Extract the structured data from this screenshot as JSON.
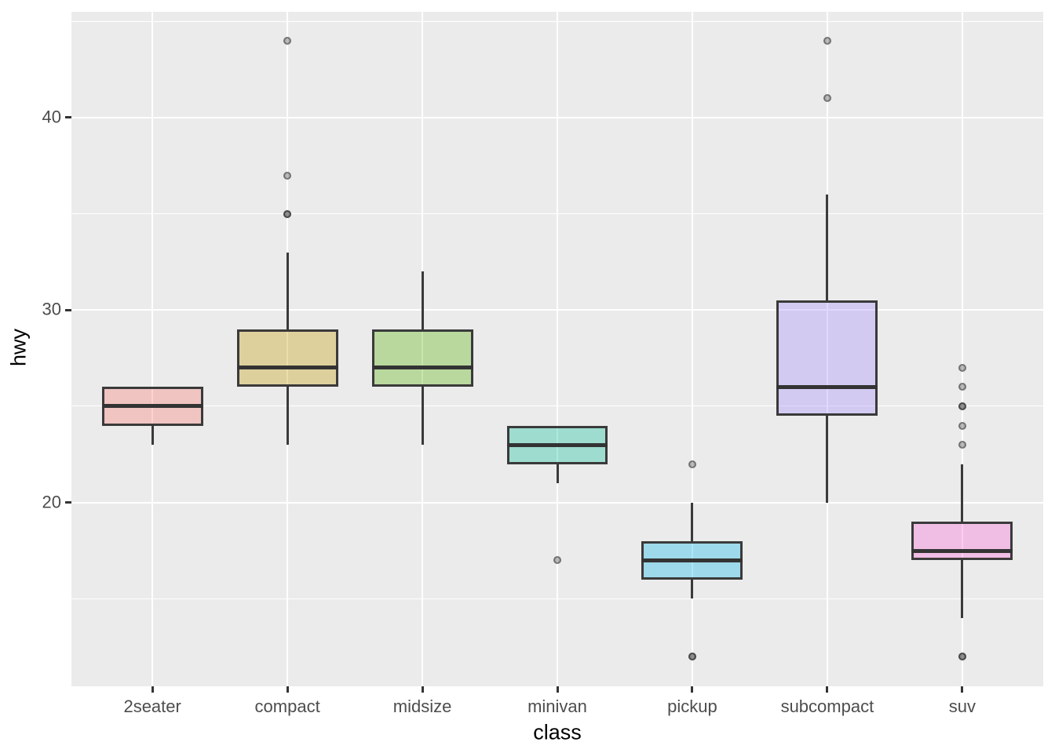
{
  "chart_data": {
    "type": "boxplot",
    "title": "",
    "xlabel": "class",
    "ylabel": "hwy",
    "categories": [
      "2seater",
      "compact",
      "midsize",
      "minivan",
      "pickup",
      "subcompact",
      "suv"
    ],
    "y_ticks": [
      20,
      30,
      40
    ],
    "y_minor_ticks": [
      15,
      25,
      35,
      45
    ],
    "ylim": [
      10.45,
      45.5
    ],
    "grid": "major-and-minor, white on gray panel",
    "legend": "none",
    "series": [
      {
        "class": "2seater",
        "fill": "#F8766D",
        "whisker_low": 23,
        "q1": 24,
        "median": 25,
        "q3": 26,
        "whisker_high": 26,
        "outliers": []
      },
      {
        "class": "compact",
        "fill": "#C49A00",
        "whisker_low": 23,
        "q1": 26,
        "median": 27,
        "q3": 29,
        "whisker_high": 33,
        "outliers": [
          35,
          35,
          37,
          44
        ]
      },
      {
        "class": "midsize",
        "fill": "#53B400",
        "whisker_low": 23,
        "q1": 26,
        "median": 27,
        "q3": 29,
        "whisker_high": 32,
        "outliers": []
      },
      {
        "class": "minivan",
        "fill": "#00C094",
        "whisker_low": 21,
        "q1": 22,
        "median": 23,
        "q3": 24,
        "whisker_high": 24,
        "outliers": [
          17
        ]
      },
      {
        "class": "pickup",
        "fill": "#00B6EB",
        "whisker_low": 15,
        "q1": 16,
        "median": 17,
        "q3": 18,
        "whisker_high": 20,
        "outliers": [
          22,
          12,
          12
        ]
      },
      {
        "class": "subcompact",
        "fill": "#A58AFF",
        "whisker_low": 20,
        "q1": 24.5,
        "median": 26,
        "q3": 30.5,
        "whisker_high": 36,
        "outliers": [
          41,
          44
        ]
      },
      {
        "class": "suv",
        "fill": "#FB61D7",
        "whisker_low": 14,
        "q1": 17,
        "median": 17.5,
        "q3": 19,
        "whisker_high": 22,
        "outliers": [
          27,
          26,
          25,
          25,
          24,
          23,
          12,
          12
        ]
      }
    ],
    "style": {
      "panel_background": "#EBEBEB",
      "gridline_color": "#FFFFFF",
      "box_border_color": "#3A3A3A",
      "median_color": "#333333",
      "fill_alpha": 0.33,
      "outlier_color": "#333333",
      "outlier_fill_alpha": 0.32,
      "outlier_ring_alpha": 0.5,
      "tick_text_color": "#4D4D4D",
      "axis_title_color": "#000000",
      "tick_mark_color": "#333333"
    }
  }
}
